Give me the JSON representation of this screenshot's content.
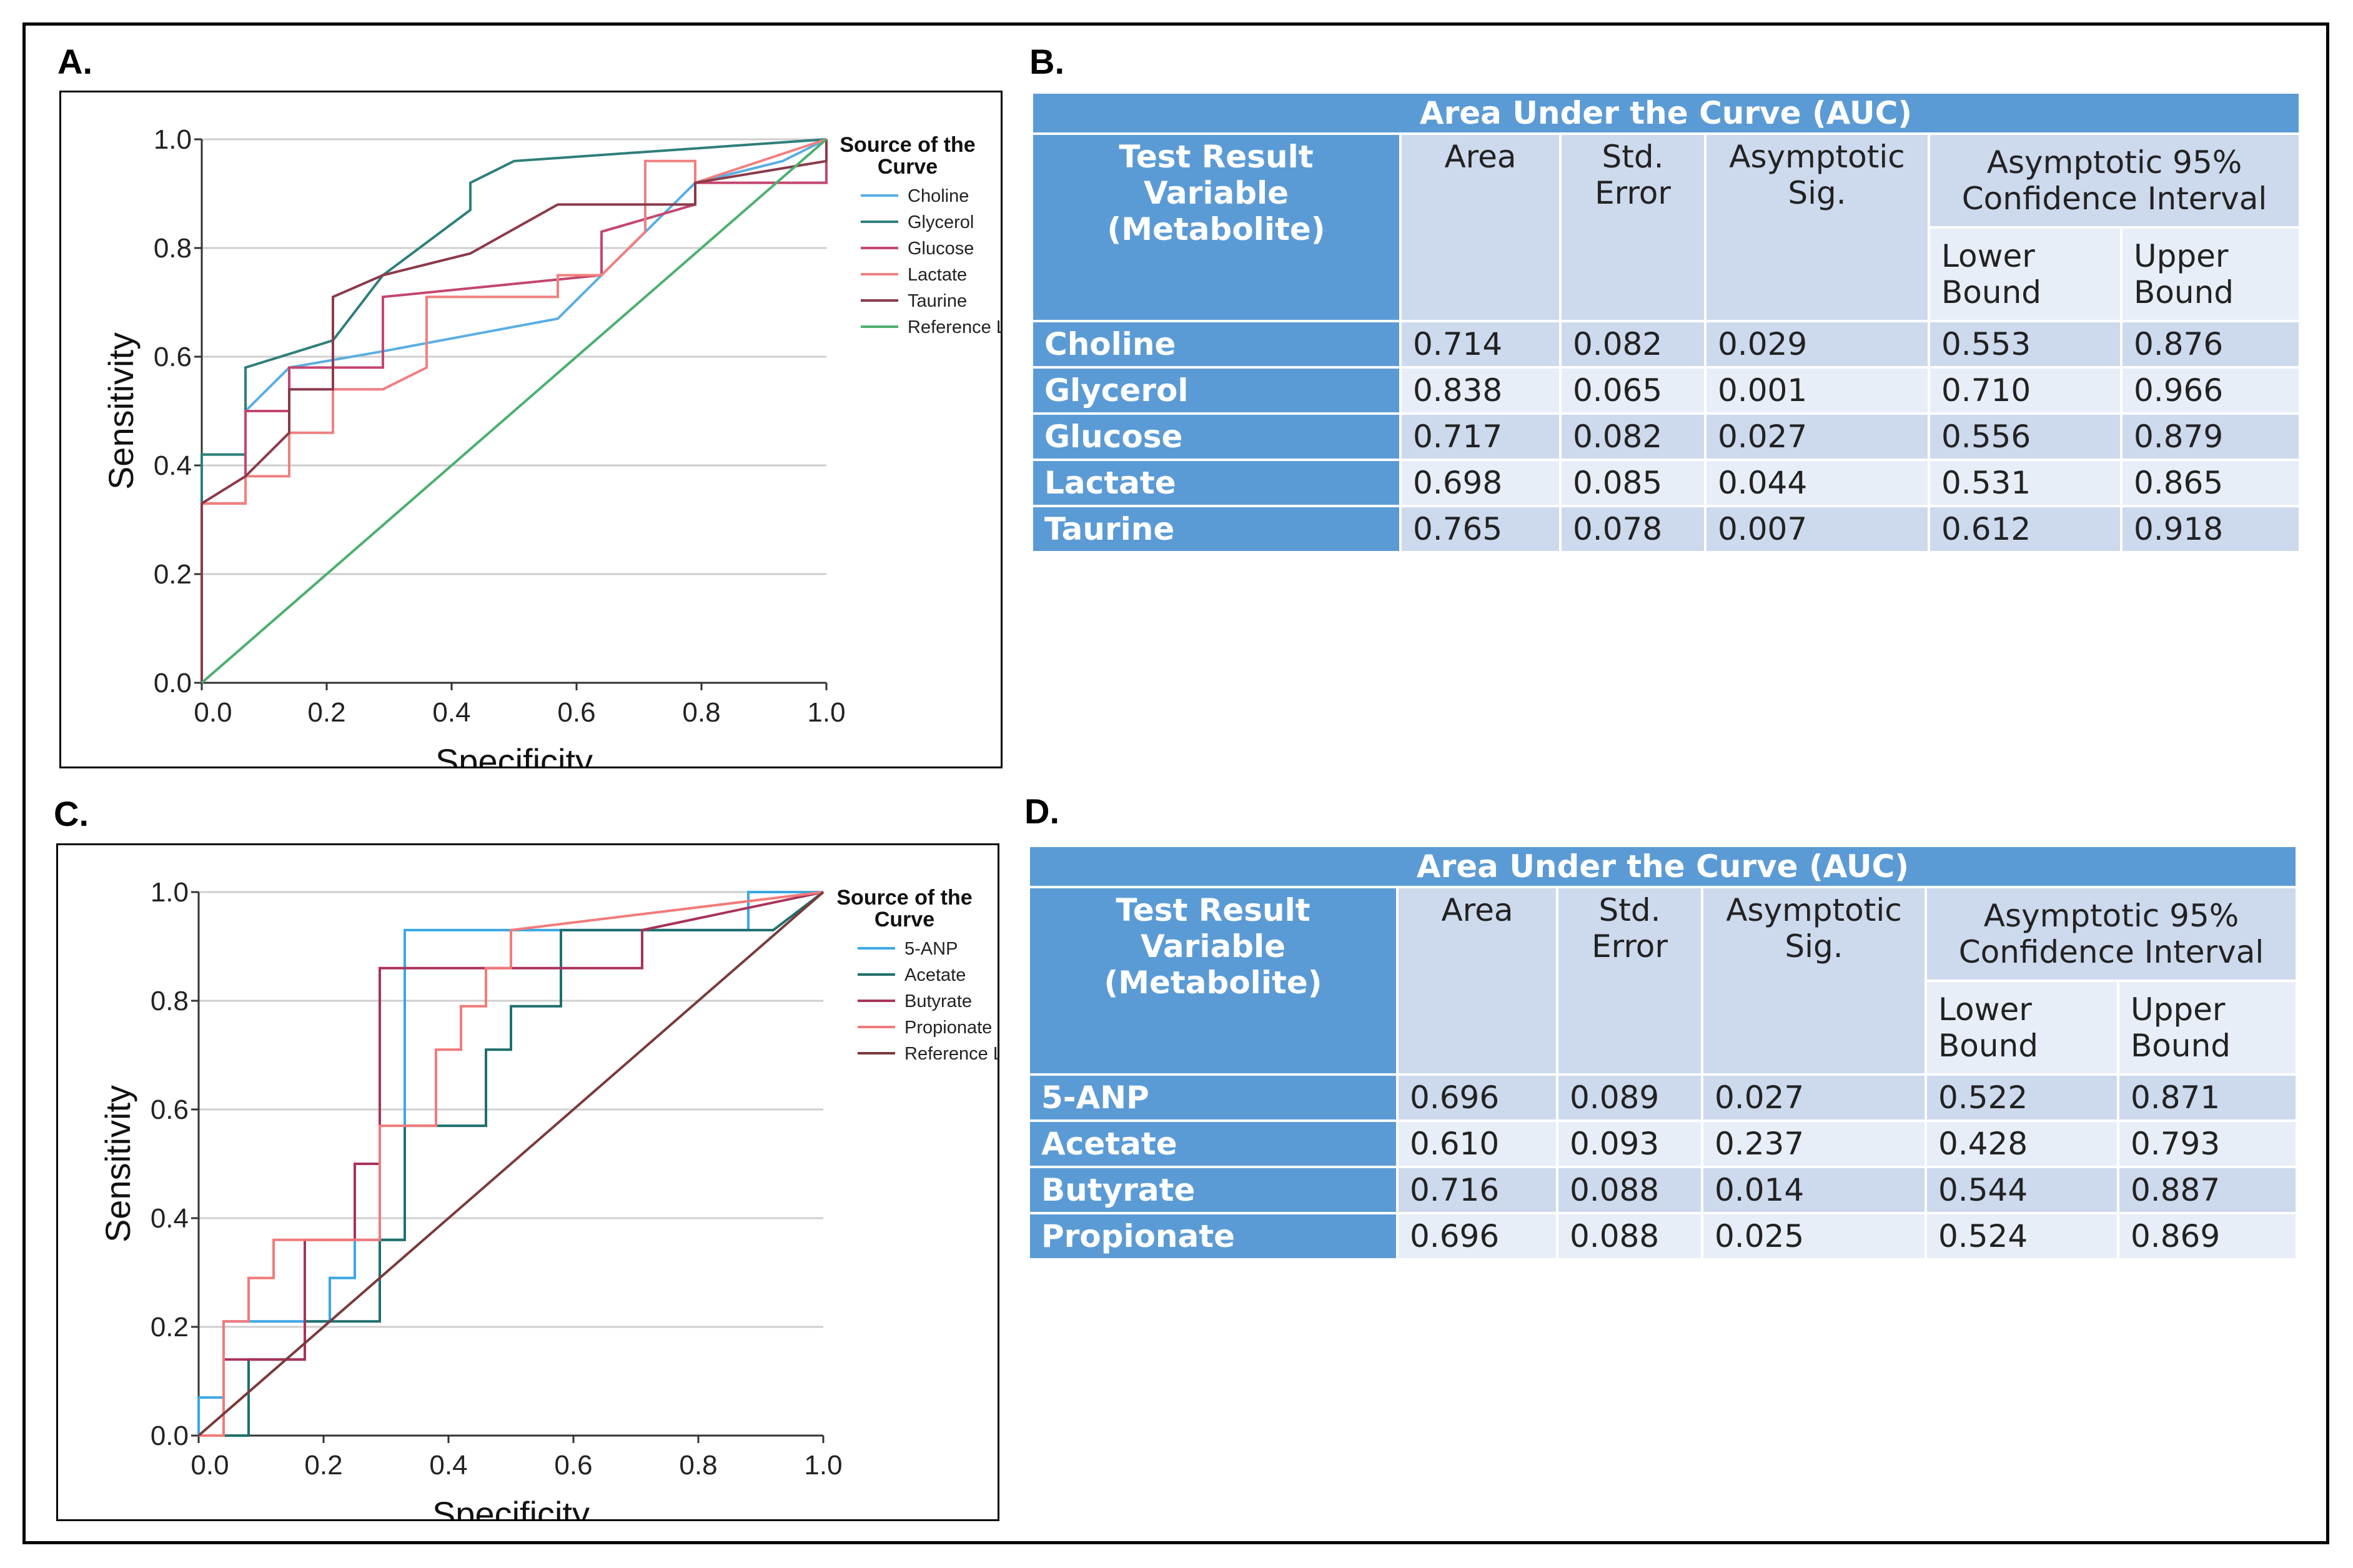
{
  "panels": {
    "a": "A.",
    "b": "B.",
    "c": "C.",
    "d": "D."
  },
  "chart_data": [
    {
      "type": "line",
      "title": "",
      "xlabel": "Specificity",
      "ylabel": "Sensitivity",
      "xlim": [
        0,
        1
      ],
      "ylim": [
        0,
        1
      ],
      "ticks": [
        "0.0",
        "0.2",
        "0.4",
        "0.6",
        "0.8",
        "1.0"
      ],
      "legend_title": "Source of the Curve",
      "series": [
        {
          "name": "Choline",
          "color": "#5aaee3",
          "x": [
            0,
            0,
            0.07,
            0.07,
            0.14,
            0.29,
            0.43,
            0.57,
            0.64,
            0.79,
            0.93,
            1.0
          ],
          "y": [
            0,
            0.42,
            0.42,
            0.5,
            0.58,
            0.61,
            0.64,
            0.67,
            0.75,
            0.92,
            0.96,
            1.0
          ]
        },
        {
          "name": "Glycerol",
          "color": "#2f7f7a",
          "x": [
            0,
            0,
            0.07,
            0.07,
            0.21,
            0.29,
            0.43,
            0.43,
            0.5,
            1.0
          ],
          "y": [
            0,
            0.42,
            0.42,
            0.58,
            0.63,
            0.75,
            0.87,
            0.92,
            0.96,
            1.0
          ]
        },
        {
          "name": "Glucose",
          "color": "#c4466e",
          "x": [
            0,
            0,
            0.07,
            0.07,
            0.14,
            0.14,
            0.29,
            0.29,
            0.64,
            0.64,
            0.79,
            0.79,
            1.0,
            1.0
          ],
          "y": [
            0,
            0.33,
            0.33,
            0.5,
            0.5,
            0.58,
            0.58,
            0.71,
            0.75,
            0.83,
            0.88,
            0.92,
            0.92,
            1.0
          ]
        },
        {
          "name": "Lactate",
          "color": "#f08080",
          "x": [
            0,
            0,
            0.07,
            0.07,
            0.14,
            0.14,
            0.21,
            0.21,
            0.29,
            0.36,
            0.36,
            0.57,
            0.57,
            0.64,
            0.71,
            0.71,
            0.79,
            0.79,
            1.0
          ],
          "y": [
            0,
            0.33,
            0.33,
            0.38,
            0.38,
            0.46,
            0.46,
            0.54,
            0.54,
            0.58,
            0.71,
            0.71,
            0.75,
            0.75,
            0.83,
            0.96,
            0.96,
            0.92,
            1.0
          ]
        },
        {
          "name": "Taurine",
          "color": "#8b3a4a",
          "x": [
            0,
            0,
            0.07,
            0.14,
            0.14,
            0.21,
            0.21,
            0.29,
            0.43,
            0.57,
            0.71,
            0.71,
            0.79,
            0.79,
            1.0,
            1.0
          ],
          "y": [
            0,
            0.33,
            0.38,
            0.46,
            0.54,
            0.54,
            0.71,
            0.75,
            0.79,
            0.88,
            0.88,
            0.88,
            0.88,
            0.92,
            0.96,
            1.0
          ]
        },
        {
          "name": "Reference Line",
          "color": "#4caf6e",
          "x": [
            0,
            1
          ],
          "y": [
            0,
            1
          ]
        }
      ]
    },
    {
      "type": "line",
      "title": "",
      "xlabel": "Specificity",
      "ylabel": "Sensitivity",
      "xlim": [
        0,
        1
      ],
      "ylim": [
        0,
        1
      ],
      "ticks": [
        "0.0",
        "0.2",
        "0.4",
        "0.6",
        "0.8",
        "1.0"
      ],
      "legend_title": "Source of the Curve",
      "series": [
        {
          "name": "5-ANP",
          "color": "#3aa7e6",
          "x": [
            0,
            0,
            0.04,
            0.04,
            0.17,
            0.17,
            0.21,
            0.21,
            0.25,
            0.25,
            0.33,
            0.33,
            0.88,
            0.88,
            0.92,
            0.92,
            1.0
          ],
          "y": [
            0,
            0.07,
            0.07,
            0.21,
            0.21,
            0.21,
            0.21,
            0.29,
            0.29,
            0.36,
            0.36,
            0.93,
            0.93,
            1.0,
            1.0,
            1.0,
            1.0
          ]
        },
        {
          "name": "Acetate",
          "color": "#1f6f6e",
          "x": [
            0,
            0.08,
            0.08,
            0.17,
            0.17,
            0.29,
            0.29,
            0.33,
            0.33,
            0.46,
            0.46,
            0.5,
            0.5,
            0.58,
            0.58,
            0.92,
            0.92,
            1.0
          ],
          "y": [
            0,
            0,
            0.14,
            0.14,
            0.21,
            0.21,
            0.36,
            0.36,
            0.57,
            0.57,
            0.71,
            0.71,
            0.79,
            0.79,
            0.93,
            0.93,
            0.93,
            1.0
          ]
        },
        {
          "name": "Butyrate",
          "color": "#a8335a",
          "x": [
            0,
            0.04,
            0.04,
            0.17,
            0.17,
            0.25,
            0.25,
            0.29,
            0.29,
            0.71,
            0.71,
            1.0
          ],
          "y": [
            0,
            0,
            0.14,
            0.14,
            0.36,
            0.36,
            0.5,
            0.5,
            0.86,
            0.86,
            0.93,
            1.0
          ]
        },
        {
          "name": "Propionate",
          "color": "#f27a7a",
          "x": [
            0,
            0.04,
            0.04,
            0.08,
            0.08,
            0.12,
            0.12,
            0.29,
            0.29,
            0.38,
            0.38,
            0.42,
            0.42,
            0.46,
            0.46,
            0.5,
            0.5,
            1.0
          ],
          "y": [
            0,
            0,
            0.21,
            0.21,
            0.29,
            0.29,
            0.36,
            0.36,
            0.57,
            0.57,
            0.71,
            0.71,
            0.79,
            0.79,
            0.86,
            0.86,
            0.93,
            1.0
          ]
        },
        {
          "name": "Reference Line",
          "color": "#7a3a3a",
          "x": [
            0,
            1
          ],
          "y": [
            0,
            1
          ]
        }
      ]
    }
  ],
  "tables": {
    "b": {
      "title": "Area Under the Curve (AUC)",
      "hdr_var": [
        "Test Result Variable",
        "(Metabolite)"
      ],
      "hdr_area": "Area",
      "hdr_se": [
        "Std.",
        "Error"
      ],
      "hdr_sig": [
        "Asymptotic",
        "Sig."
      ],
      "hdr_ci": [
        "Asymptotic 95%",
        "Confidence Interval"
      ],
      "hdr_lower": [
        "Lower",
        "Bound"
      ],
      "hdr_upper": [
        "Upper",
        "Bound"
      ],
      "rows": [
        {
          "name": "Choline",
          "area": "0.714",
          "se": "0.082",
          "sig": "0.029",
          "lower": "0.553",
          "upper": "0.876"
        },
        {
          "name": "Glycerol",
          "area": "0.838",
          "se": "0.065",
          "sig": "0.001",
          "lower": "0.710",
          "upper": "0.966"
        },
        {
          "name": "Glucose",
          "area": "0.717",
          "se": "0.082",
          "sig": "0.027",
          "lower": "0.556",
          "upper": "0.879"
        },
        {
          "name": "Lactate",
          "area": "0.698",
          "se": "0.085",
          "sig": "0.044",
          "lower": "0.531",
          "upper": "0.865"
        },
        {
          "name": "Taurine",
          "area": "0.765",
          "se": "0.078",
          "sig": "0.007",
          "lower": "0.612",
          "upper": "0.918"
        }
      ]
    },
    "d": {
      "title": "Area Under the Curve (AUC)",
      "hdr_var": [
        "Test Result Variable",
        "(Metabolite)"
      ],
      "hdr_area": "Area",
      "hdr_se": [
        "Std.",
        "Error"
      ],
      "hdr_sig": [
        "Asymptotic",
        "Sig."
      ],
      "hdr_ci": [
        "Asymptotic 95%",
        "Confidence Interval"
      ],
      "hdr_lower": [
        "Lower",
        "Bound"
      ],
      "hdr_upper": [
        "Upper",
        "Bound"
      ],
      "rows": [
        {
          "name": "5-ANP",
          "area": "0.696",
          "se": "0.089",
          "sig": "0.027",
          "lower": "0.522",
          "upper": "0.871"
        },
        {
          "name": "Acetate",
          "area": "0.610",
          "se": "0.093",
          "sig": "0.237",
          "lower": "0.428",
          "upper": "0.793"
        },
        {
          "name": "Butyrate",
          "area": "0.716",
          "se": "0.088",
          "sig": "0.014",
          "lower": "0.544",
          "upper": "0.887"
        },
        {
          "name": "Propionate",
          "area": "0.696",
          "se": "0.088",
          "sig": "0.025",
          "lower": "0.524",
          "upper": "0.869"
        }
      ]
    }
  }
}
